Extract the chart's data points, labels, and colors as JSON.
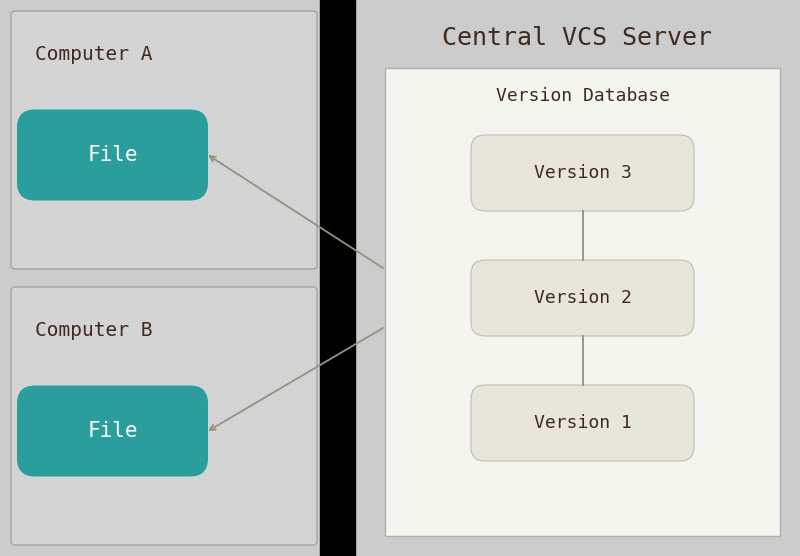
{
  "bg_color": "#cccccc",
  "black_divider_color": "#000000",
  "comp_box_bg": "#d4d4d4",
  "comp_box_edge": "#aaaaaa",
  "comp_a_label": "Computer A",
  "comp_b_label": "Computer B",
  "comp_label_color": "#3d2b1f",
  "comp_label_fontsize": 14,
  "comp_label_font": "monospace",
  "file_color": "#2a9d9d",
  "file_label": "File",
  "file_label_color": "#ffffff",
  "file_label_fontsize": 15,
  "file_label_font": "monospace",
  "server_label": "Central VCS Server",
  "server_label_color": "#3d2b1f",
  "server_label_fontsize": 18,
  "server_label_font": "monospace",
  "db_box_bg": "#f5f5f0",
  "db_box_edge": "#b0b0b0",
  "db_label": "Version Database",
  "db_label_color": "#3d2b1f",
  "db_label_fontsize": 13,
  "db_label_font": "monospace",
  "version_box_bg": "#e8e5db",
  "version_box_edge": "#c0bdb0",
  "version_labels": [
    "Version 3",
    "Version 2",
    "Version 1"
  ],
  "version_label_color": "#3d2b1f",
  "version_label_fontsize": 13,
  "version_label_font": "monospace",
  "arrow_color": "#999080",
  "arrow_lw": 1.3,
  "conn_line_color": "#888878",
  "conn_line_lw": 1.2
}
